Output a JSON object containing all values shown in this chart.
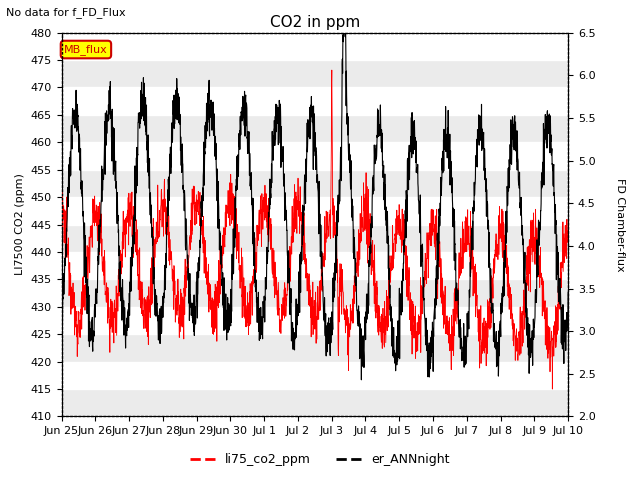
{
  "title": "CO2 in ppm",
  "subtitle": "No data for f_FD_Flux",
  "ylabel_left": "LI7500 CO2 (ppm)",
  "ylabel_right": "FD Chamber-flux",
  "ylim_left": [
    410,
    480
  ],
  "ylim_right": [
    2.0,
    6.5
  ],
  "yticks_left": [
    410,
    415,
    420,
    425,
    430,
    435,
    440,
    445,
    450,
    455,
    460,
    465,
    470,
    475,
    480
  ],
  "yticks_right": [
    2.0,
    2.5,
    3.0,
    3.5,
    4.0,
    4.5,
    5.0,
    5.5,
    6.0,
    6.5
  ],
  "xtick_labels": [
    "Jun 25",
    "Jun 26",
    "Jun 27",
    "Jun 28",
    "Jun 29",
    "Jun 30",
    "Jul 1",
    "Jul 2",
    "Jul 3",
    "Jul 4",
    "Jul 5",
    "Jul 6",
    "Jul 7",
    "Jul 8",
    "Jul 9",
    "Jul 10"
  ],
  "legend_labels": [
    "li75_co2_ppm",
    "er_ANNnight"
  ],
  "legend_colors": [
    "#ff0000",
    "#000000"
  ],
  "line_color_red": "#ff0000",
  "line_color_black": "#000000",
  "mb_flux_color": "#ffff00",
  "mb_flux_border": "#cc0000",
  "mb_flux_text": "#cc0000",
  "background_color": "#ffffff",
  "grid_color": "#e0e0e0",
  "title_fontsize": 11,
  "label_fontsize": 8,
  "tick_fontsize": 8
}
